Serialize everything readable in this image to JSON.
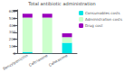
{
  "chart_data": {
    "type": "bar",
    "title": "Total antibiotic administration",
    "categories": [
      "Benzylpenicillin",
      "Ceftriaxone",
      "Cefotaxime"
    ],
    "series": [
      {
        "name": "Consumables costs",
        "color": "#00e5e5",
        "values": [
          20,
          5,
          150
        ]
      },
      {
        "name": "Administration costs",
        "color": "#ccffcc",
        "values": [
          490,
          505,
          80
        ]
      },
      {
        "name": "Drug cost",
        "color": "#9900bb",
        "values": [
          55,
          55,
          55
        ]
      }
    ],
    "stacked": true,
    "ylim": [
      0,
      620
    ],
    "yticks": [
      0,
      100,
      200,
      300,
      400,
      500,
      600
    ],
    "grid": false,
    "legend": "right"
  }
}
